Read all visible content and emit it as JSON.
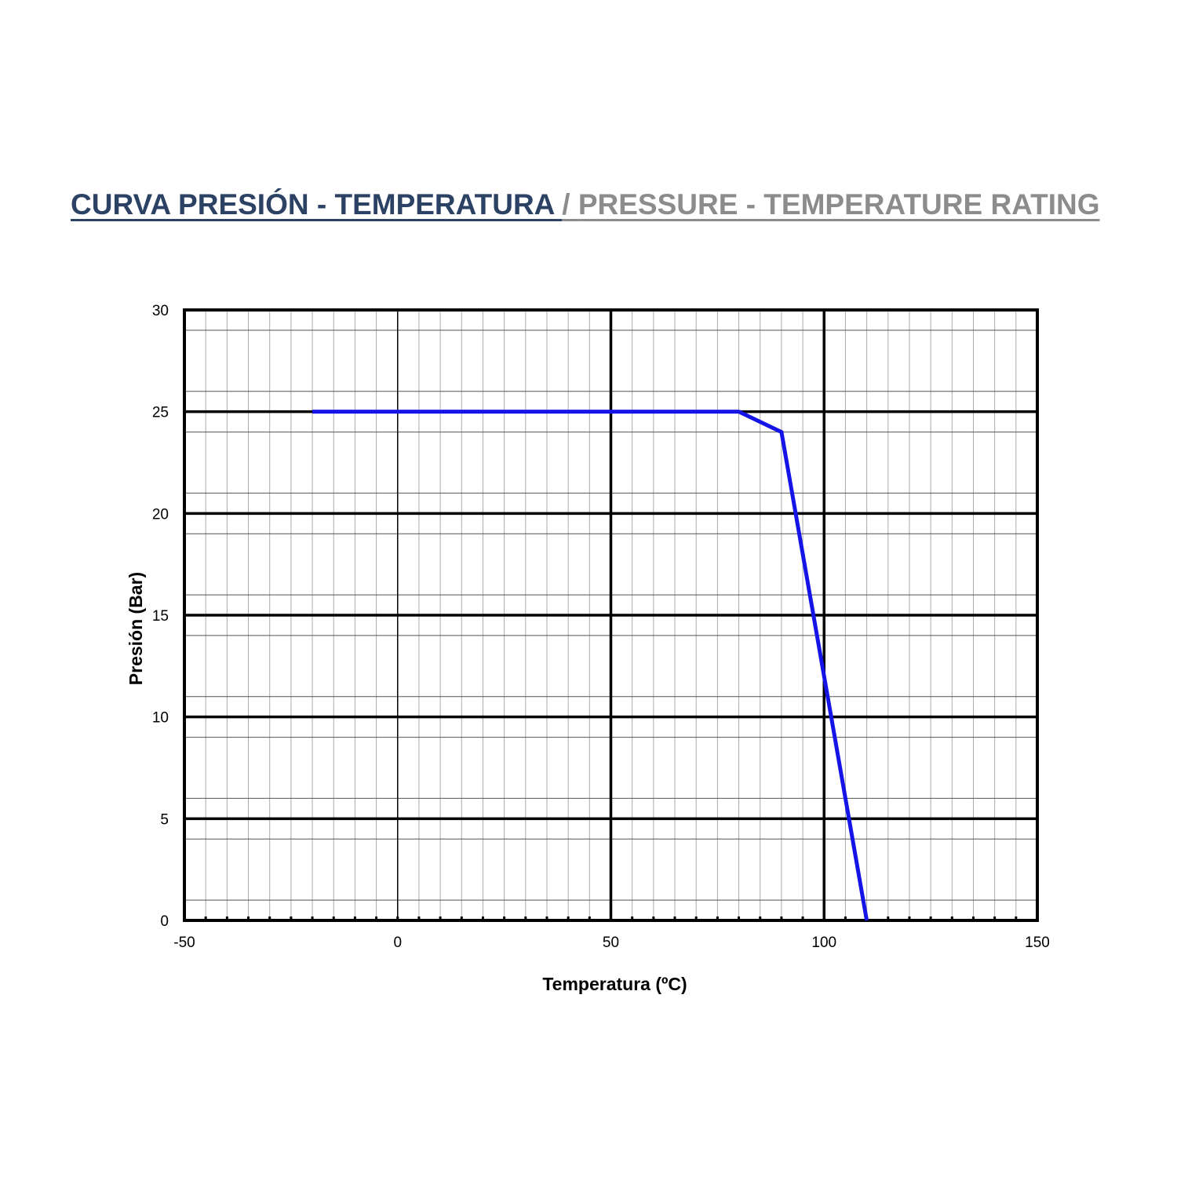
{
  "header": {
    "title_es": "CURVA PRESIÓN - TEMPERATURA ",
    "separator": " / ",
    "title_en": " PRESSURE - TEMPERATURE RATING"
  },
  "colors": {
    "title_es": "#2b4264",
    "title_en": "#8c8c8c",
    "series": "#1414e6"
  },
  "chart_data": {
    "type": "line",
    "xlabel": "Temperatura (ºC)",
    "ylabel": "Presión  (Bar)",
    "xlim": [
      -50,
      150
    ],
    "ylim": [
      0,
      30
    ],
    "x_ticks": [
      "-50",
      "0",
      "50",
      "100",
      "150"
    ],
    "y_ticks": [
      "0",
      "5",
      "10",
      "15",
      "20",
      "25",
      "30"
    ],
    "grid": true,
    "series": [
      {
        "x": [
          -20,
          80,
          90,
          100,
          110
        ],
        "y": [
          25,
          25,
          24,
          12,
          0
        ]
      }
    ]
  }
}
